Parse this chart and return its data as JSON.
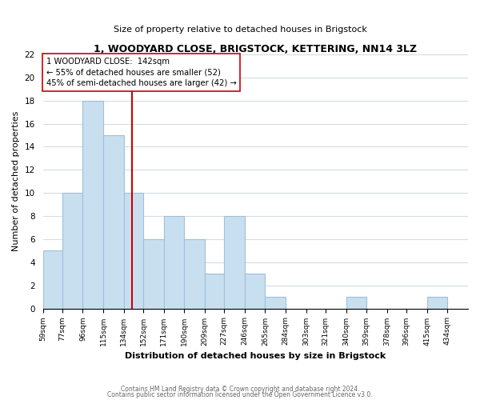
{
  "title1": "1, WOODYARD CLOSE, BRIGSTOCK, KETTERING, NN14 3LZ",
  "title2": "Size of property relative to detached houses in Brigstock",
  "xlabel": "Distribution of detached houses by size in Brigstock",
  "ylabel": "Number of detached properties",
  "bar_labels": [
    "59sqm",
    "77sqm",
    "96sqm",
    "115sqm",
    "134sqm",
    "152sqm",
    "171sqm",
    "190sqm",
    "209sqm",
    "227sqm",
    "246sqm",
    "265sqm",
    "284sqm",
    "303sqm",
    "321sqm",
    "340sqm",
    "359sqm",
    "378sqm",
    "396sqm",
    "415sqm",
    "434sqm"
  ],
  "bar_heights": [
    5,
    10,
    18,
    15,
    10,
    6,
    8,
    6,
    3,
    8,
    3,
    1,
    0,
    0,
    0,
    1,
    0,
    0,
    0,
    1,
    0
  ],
  "bin_starts": [
    59,
    77,
    96,
    115,
    134,
    152,
    171,
    190,
    209,
    227,
    246,
    265,
    284,
    303,
    321,
    340,
    359,
    378,
    396,
    415,
    434
  ],
  "bar_color": "#c8dff0",
  "bar_edge_color": "#a0bfd8",
  "grid_color": "#d0dde8",
  "property_line_x": 142,
  "property_line_color": "#cc0000",
  "annotation_text": "1 WOODYARD CLOSE:  142sqm\n← 55% of detached houses are smaller (52)\n45% of semi-detached houses are larger (42) →",
  "annotation_box_color": "#ffffff",
  "annotation_box_edge_color": "#cc0000",
  "ylim": [
    0,
    22
  ],
  "yticks": [
    0,
    2,
    4,
    6,
    8,
    10,
    12,
    14,
    16,
    18,
    20,
    22
  ],
  "footer1": "Contains HM Land Registry data © Crown copyright and database right 2024.",
  "footer2": "Contains public sector information licensed under the Open Government Licence v3.0."
}
